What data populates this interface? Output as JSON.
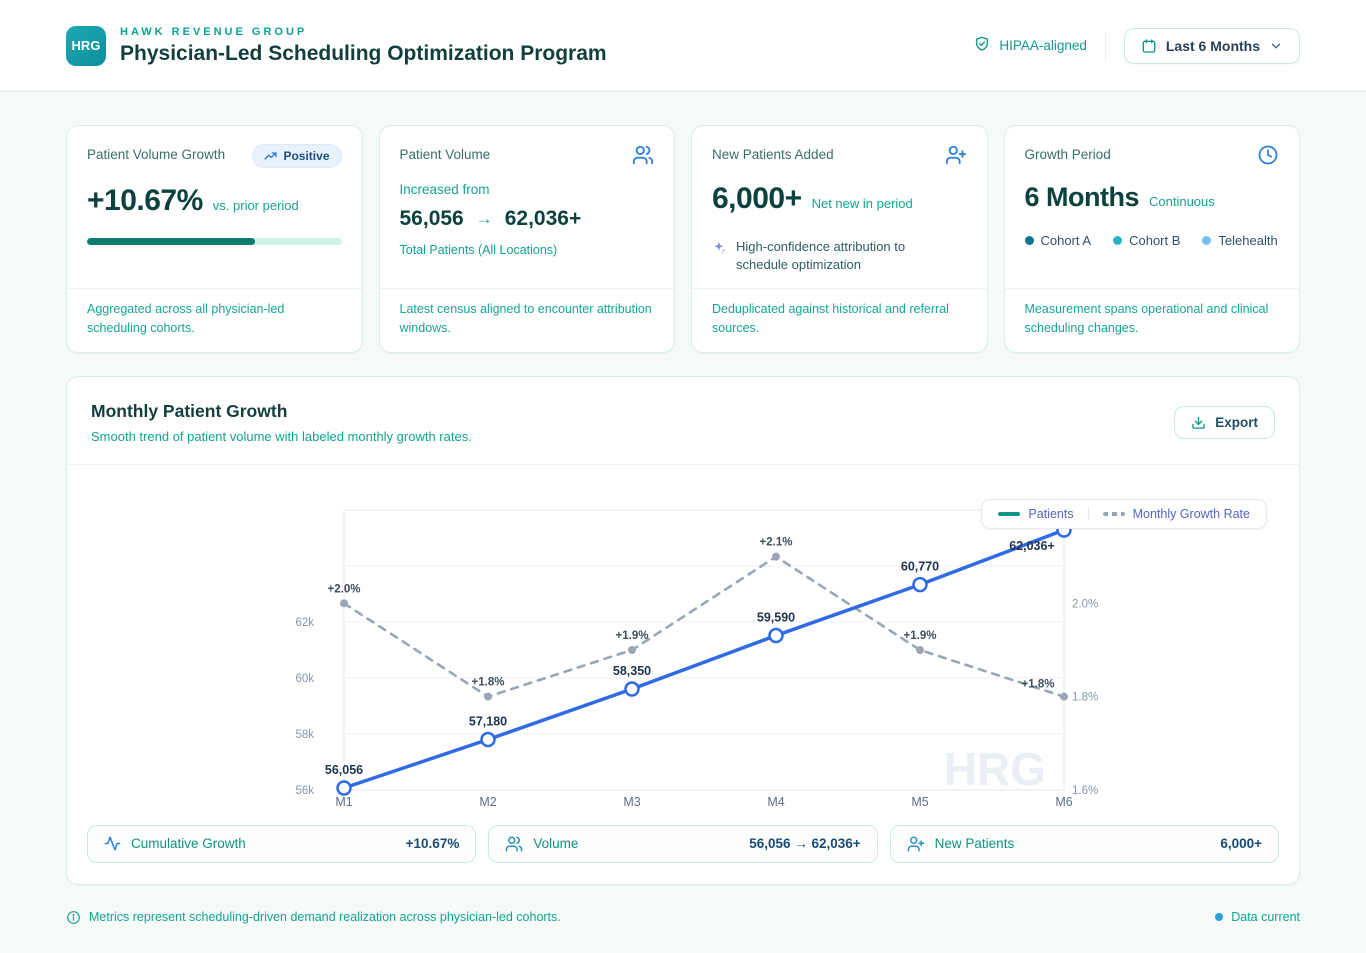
{
  "header": {
    "logo": "HRG",
    "brand": "HAWK REVENUE GROUP",
    "title": "Physician-Led Scheduling Optimization Program",
    "compliance": "HIPAA-aligned",
    "date_range": "Last 6 Months"
  },
  "cards": {
    "growth": {
      "title": "Patient Volume Growth",
      "badge": "Positive",
      "value": "+10.67%",
      "suffix": "vs. prior period",
      "progress_pct": 66,
      "footnote": "Aggregated across all physician-led scheduling cohorts."
    },
    "volume": {
      "title": "Patient Volume",
      "lead": "Increased from",
      "from": "56,056",
      "arrow": "→",
      "to": "62,036+",
      "caption": "Total Patients (All Locations)",
      "footnote": "Latest census aligned to encounter attribution windows."
    },
    "new_patients": {
      "title": "New Patients Added",
      "value": "6,000+",
      "suffix": "Net new in period",
      "highlight": "High-confidence attribution to schedule optimization",
      "footnote": "Deduplicated against historical and referral sources."
    },
    "period": {
      "title": "Growth Period",
      "value": "6 Months",
      "suffix": "Continuous",
      "cohorts": [
        {
          "label": "Cohort A",
          "color": "#0e7490"
        },
        {
          "label": "Cohort B",
          "color": "#29b3c9"
        },
        {
          "label": "Telehealth",
          "color": "#74c0f0"
        }
      ],
      "footnote": "Measurement spans operational and clinical scheduling changes."
    }
  },
  "panel": {
    "title": "Monthly Patient Growth",
    "subtitle": "Smooth trend of patient volume with labeled monthly growth rates.",
    "export_label": "Export",
    "watermark": "HRG"
  },
  "chart_data": {
    "type": "line",
    "title": "Monthly Patient Growth",
    "x": [
      "M1",
      "M2",
      "M3",
      "M4",
      "M5",
      "M6"
    ],
    "series": [
      {
        "name": "Patients",
        "style": "solid",
        "color": "#2f6be4",
        "legend_color": "#0d9488",
        "values": [
          56056,
          57180,
          58350,
          59590,
          60770,
          62036
        ],
        "labels": [
          "56,056",
          "57,180",
          "58,350",
          "59,590",
          "60,770",
          "62,036+"
        ]
      },
      {
        "name": "Monthly Growth Rate",
        "style": "dashed",
        "color": "#9aa6b5",
        "values": [
          2.0,
          1.8,
          1.9,
          2.1,
          1.9,
          1.8
        ],
        "labels": [
          "+2.0%",
          "+1.8%",
          "+1.9%",
          "+2.1%",
          "+1.9%",
          "+1.8%"
        ]
      }
    ],
    "left_axis": {
      "ticks": [
        "56k",
        "58k",
        "60k",
        "62k"
      ],
      "unit": "patients"
    },
    "right_axis": {
      "ticks": [
        "1.6%",
        "1.8%",
        "2.0%"
      ],
      "tick_values": [
        1.6,
        1.8,
        2.0
      ],
      "range": [
        1.6,
        2.2
      ]
    },
    "legend": {
      "position": "top-right",
      "items": [
        "Patients",
        "Monthly Growth Rate"
      ]
    },
    "grid": true
  },
  "chips": [
    {
      "icon": "activity",
      "label": "Cumulative Growth",
      "value": "+10.67%"
    },
    {
      "icon": "users",
      "label": "Volume",
      "value": "56,056 → 62,036+"
    },
    {
      "icon": "user-plus",
      "label": "New Patients",
      "value": "6,000+"
    }
  ],
  "footer": {
    "note": "Metrics represent scheduling-driven demand realization across physician-led cohorts.",
    "status": "Data current",
    "status_color": "#2e9fdf"
  }
}
